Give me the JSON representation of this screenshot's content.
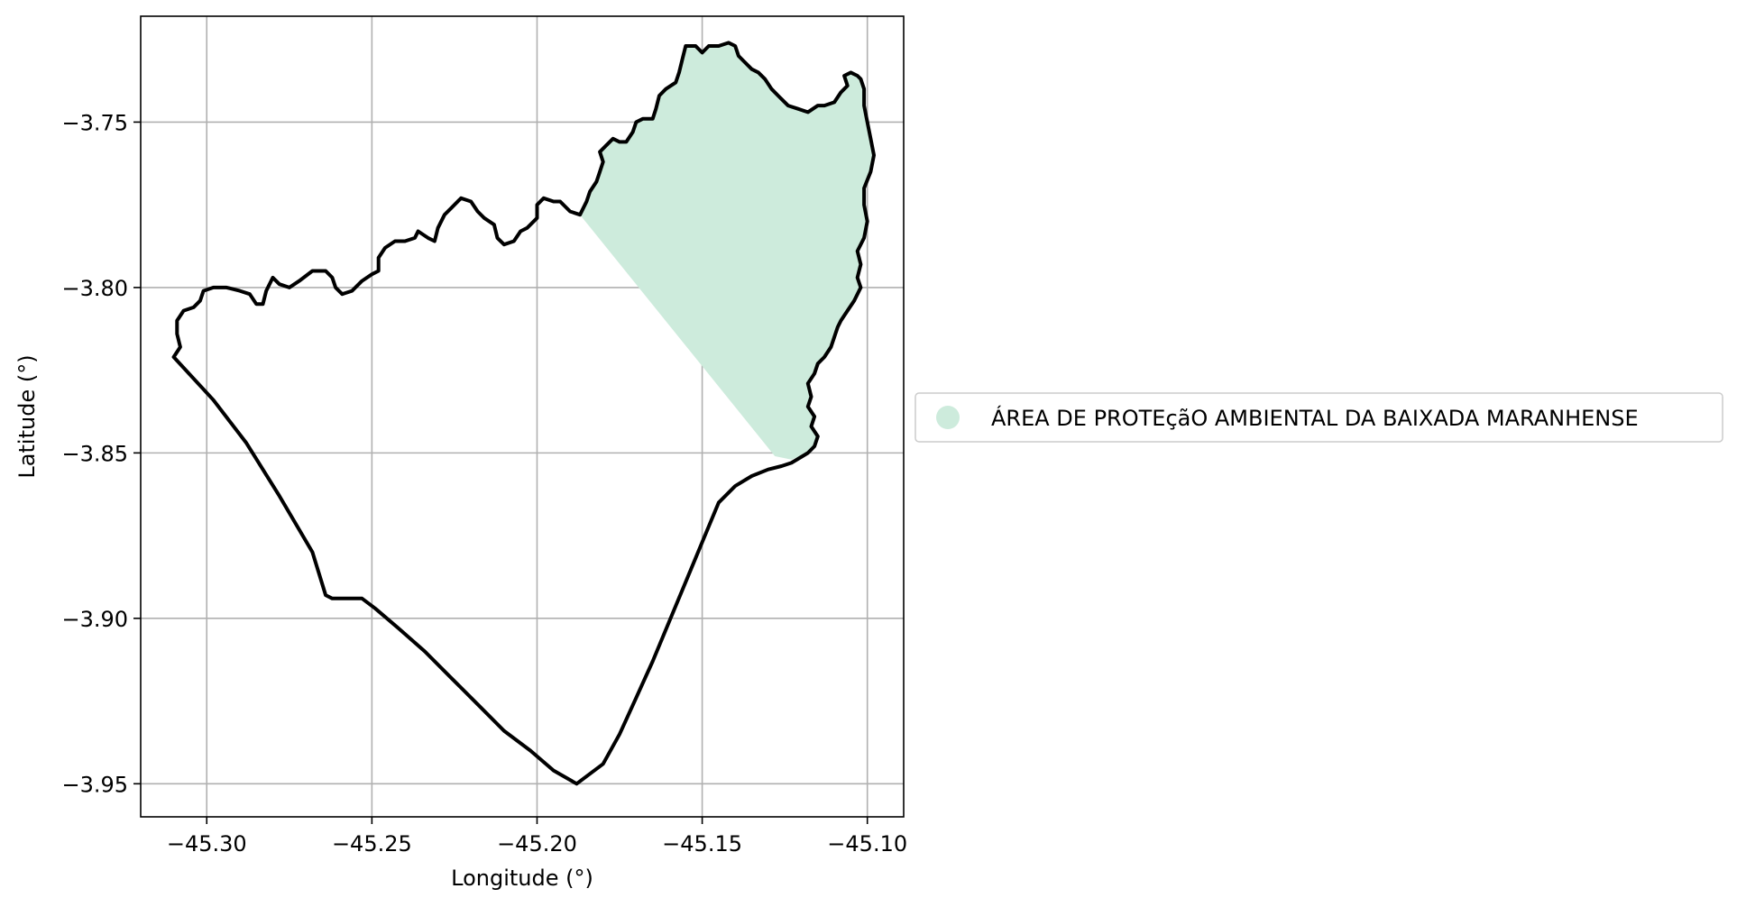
{
  "chart_data": {
    "type": "map",
    "xlabel": "Longitude (°)",
    "ylabel": "Latitude (°)",
    "xlim": [
      -45.32,
      -45.089
    ],
    "ylim": [
      -3.96,
      -3.718
    ],
    "x_ticks": [
      -45.3,
      -45.25,
      -45.2,
      -45.15,
      -45.1
    ],
    "x_tick_labels": [
      "−45.30",
      "−45.25",
      "−45.20",
      "−45.15",
      "−45.10"
    ],
    "y_ticks": [
      -3.75,
      -3.8,
      -3.85,
      -3.9,
      -3.95
    ],
    "y_tick_labels": [
      "−3.75",
      "−3.80",
      "−3.85",
      "−3.90",
      "−3.95"
    ],
    "grid": true,
    "legend_position": "right-center",
    "legend": [
      {
        "label": "ÁREA DE PROTEçãO AMBIENTAL DA BAIXADA MARANHENSE",
        "color": "#cdebdc"
      }
    ],
    "colors": {
      "protected_area_fill": "#cdebdc",
      "boundary_stroke": "#000000",
      "grid": "#b0b0b0"
    }
  }
}
